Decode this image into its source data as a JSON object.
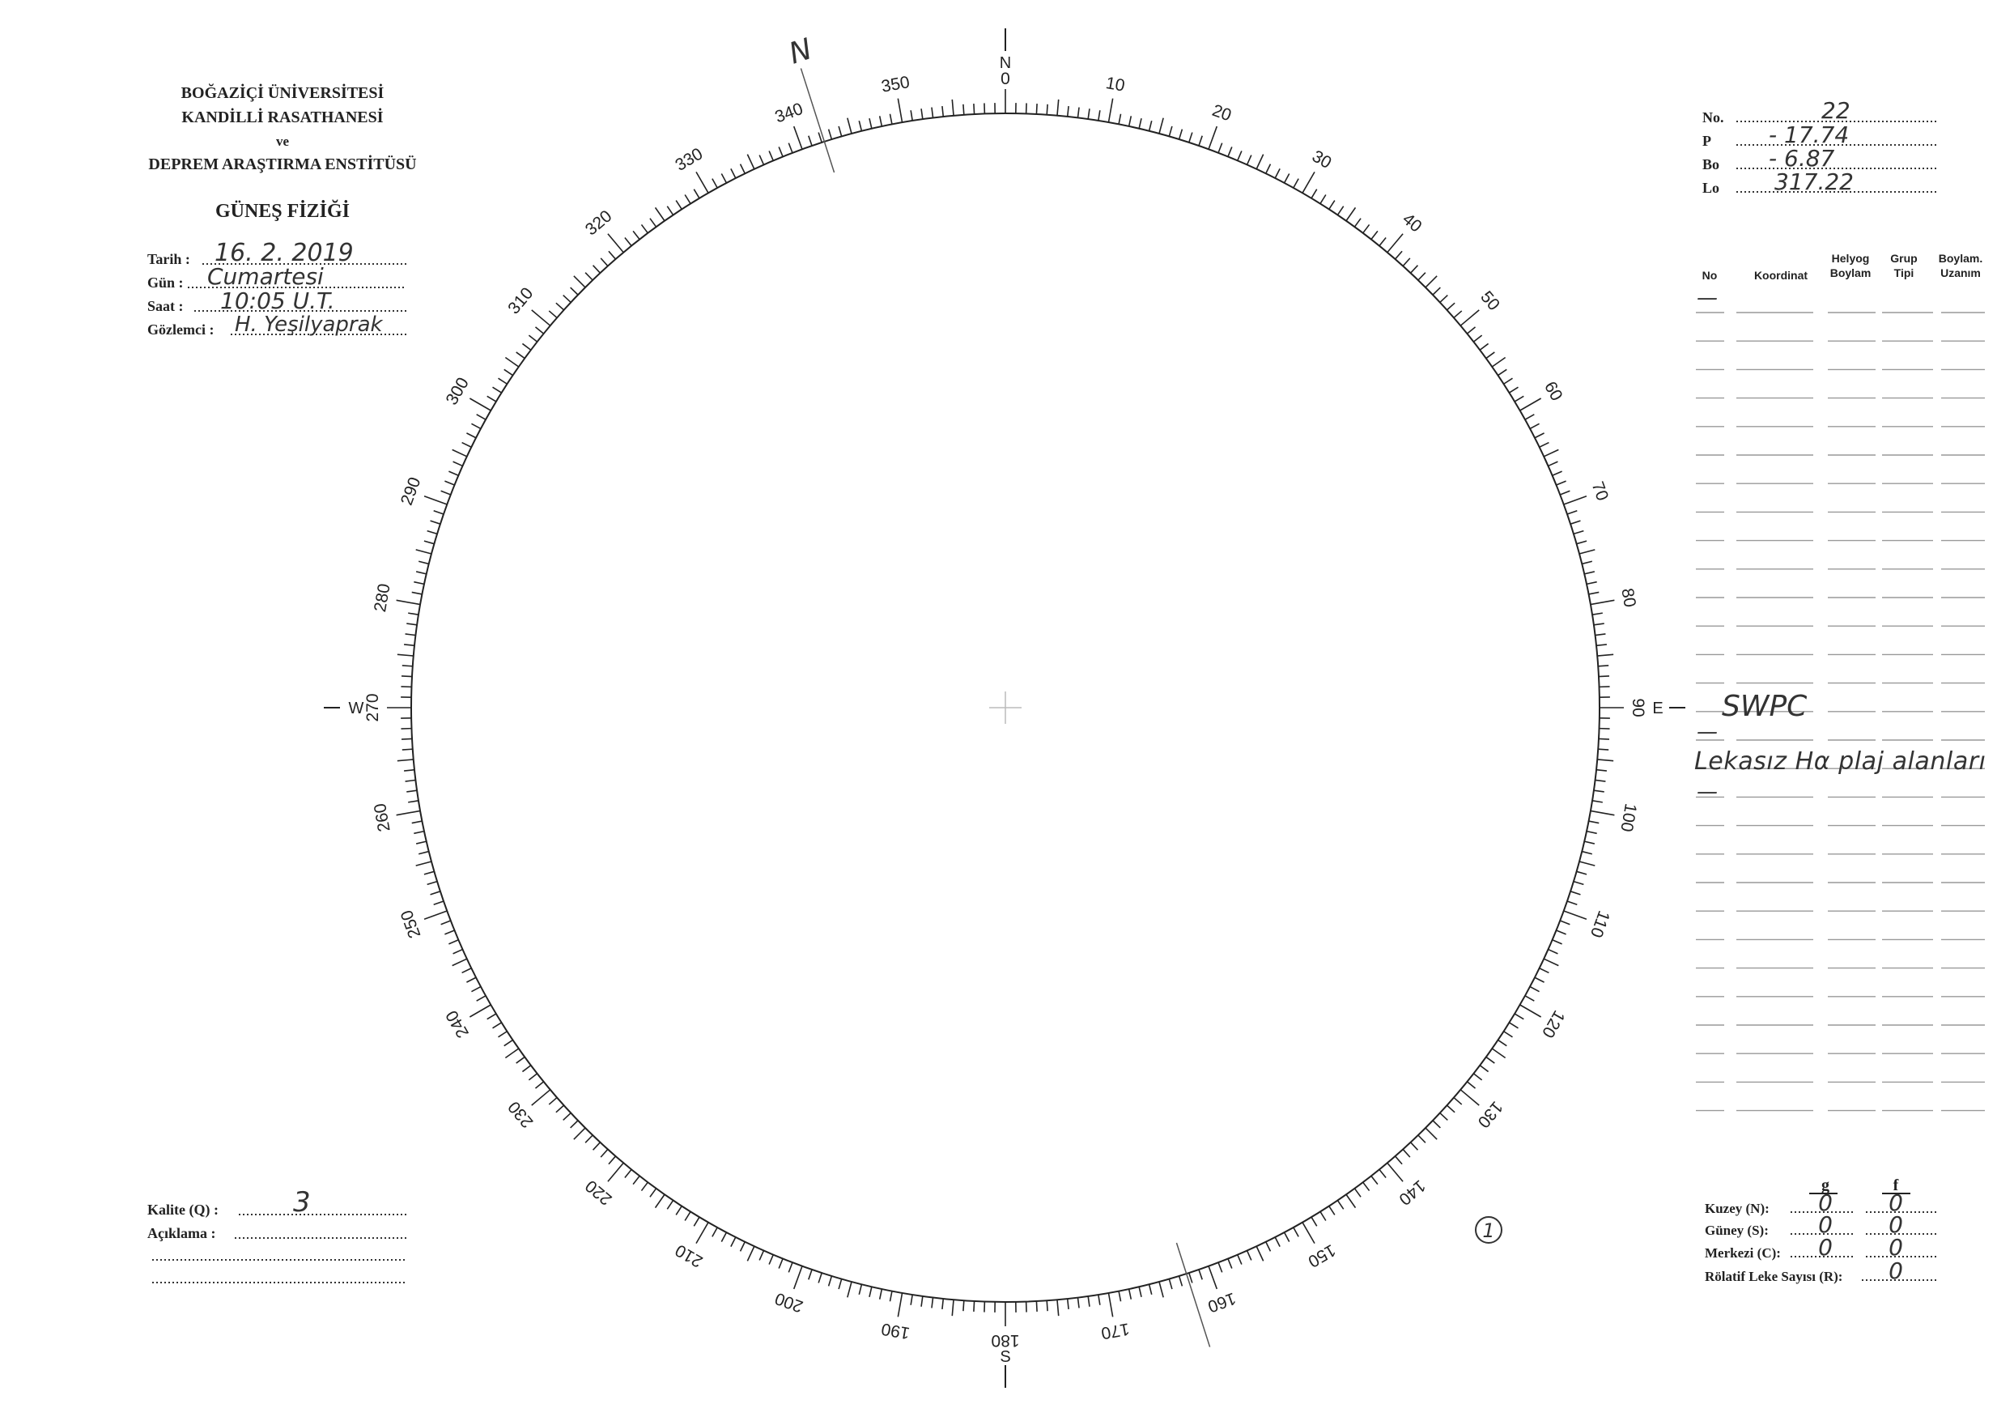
{
  "header": {
    "institution": [
      "BOĞAZİÇİ ÜNİVERSİTESİ",
      "KANDİLLİ RASATHANESİ",
      "ve",
      "DEPREM ARAŞTIRMA ENSTİTÜSÜ"
    ],
    "department": "GÜNEŞ FİZİĞİ"
  },
  "observation": {
    "date_label": "Tarih :",
    "date_value": "16. 2. 2019",
    "day_label": "Gün :",
    "day_value": "Cumartesi",
    "time_label": "Saat :",
    "time_value": "10:05  U.T.",
    "observer_label": "Gözlemci :",
    "observer_value": "H. Yeşilyaprak"
  },
  "ephemeris": {
    "no_label": "No.",
    "no_value": "22",
    "p_label": "P",
    "p_value": "- 17.74",
    "bo_label": "Bo",
    "bo_value": "- 6.87",
    "lo_label": "Lo",
    "lo_value": "317.22"
  },
  "table": {
    "headers": [
      "No",
      "Koordinat",
      "Helyog Boylam",
      "Grup Tipi",
      "Boylam. Uzanım"
    ],
    "entries": [
      "—",
      "SWPC",
      "—",
      "Lekasız Hα plaj alanları",
      "—"
    ]
  },
  "disk": {
    "cardinals": {
      "north": "N",
      "south": "S",
      "east": "E",
      "west": "W"
    },
    "pole_mark": "N",
    "degree_labels": [
      "0",
      "10",
      "20",
      "30",
      "40",
      "50",
      "60",
      "70",
      "80",
      "90",
      "100",
      "110",
      "120",
      "130",
      "140",
      "150",
      "160",
      "170",
      "180",
      "190",
      "200",
      "210",
      "220",
      "230",
      "240",
      "250",
      "260",
      "270",
      "280",
      "290",
      "300",
      "310",
      "320",
      "330",
      "340",
      "350"
    ],
    "group_count_mark": "1"
  },
  "quality": {
    "label": "Kalite (Q) :",
    "value": "3",
    "comment_label": "Açıklama :"
  },
  "counts": {
    "g_header": "g",
    "f_header": "f",
    "north_label": "Kuzey (N):",
    "north_g": "0",
    "north_f": "0",
    "south_label": "Güney (S):",
    "south_g": "0",
    "south_f": "0",
    "center_label": "Merkezi (C):",
    "center_g": "0",
    "center_f": "0",
    "relative_label": "Rölatif Leke Sayısı (R):",
    "relative_value": "0"
  }
}
